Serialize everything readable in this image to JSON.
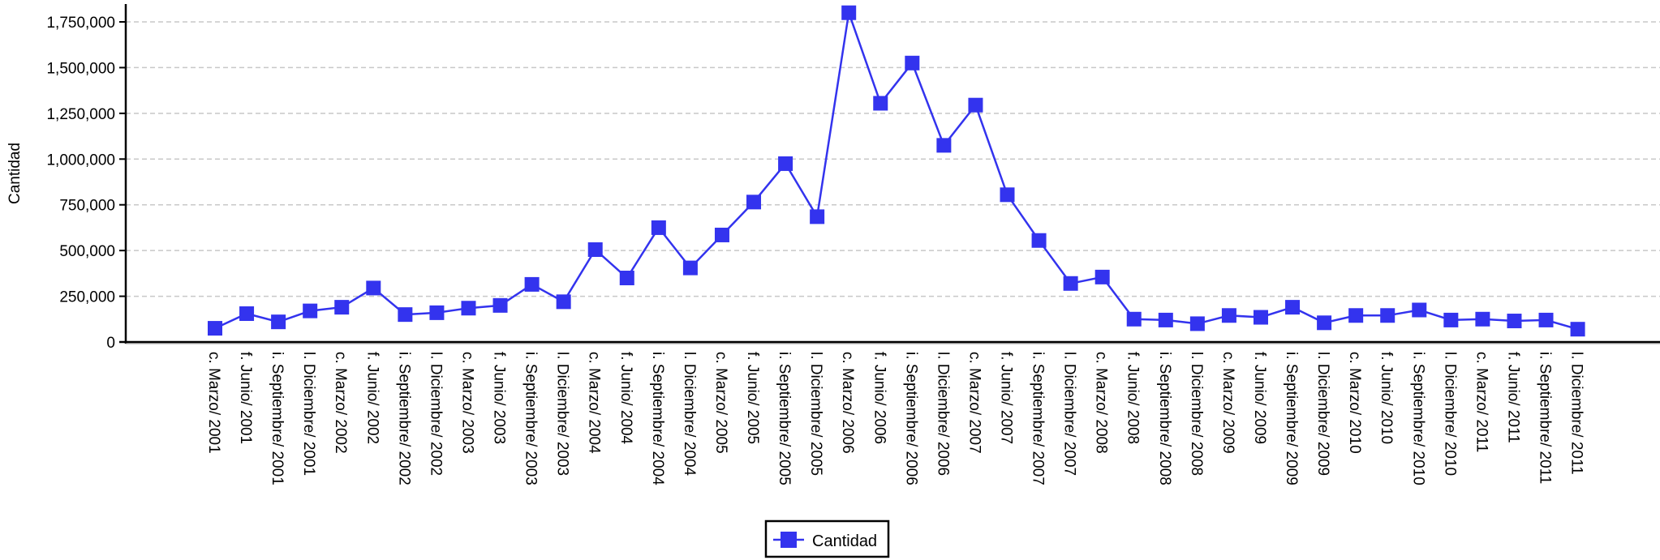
{
  "chart_data": {
    "type": "line",
    "ylabel": "Cantidad",
    "xlabel": "",
    "ylim": [
      0,
      1750000
    ],
    "yticks": [
      0,
      250000,
      500000,
      750000,
      1000000,
      1250000,
      1500000,
      1750000
    ],
    "ytick_labels": [
      "0",
      "250,000",
      "500,000",
      "750,000",
      "1,000,000",
      "1,250,000",
      "1,500,000",
      "1,750,000"
    ],
    "grid": "horizontal dashed",
    "legend_position": "bottom-center",
    "categories": [
      "c. Marzo/ 2001",
      "f. Junio/ 2001",
      "i. Septiembre/ 2001",
      "l. Diciembre/ 2001",
      "c. Marzo/ 2002",
      "f. Junio/ 2002",
      "i. Septiembre/ 2002",
      "l. Diciembre/ 2002",
      "c. Marzo/ 2003",
      "f. Junio/ 2003",
      "i. Septiembre/ 2003",
      "l. Diciembre/ 2003",
      "c. Marzo/ 2004",
      "f. Junio/ 2004",
      "i. Septiembre/ 2004",
      "l. Diciembre/ 2004",
      "c. Marzo/ 2005",
      "f. Junio/ 2005",
      "i. Septiembre/ 2005",
      "l. Diciembre/ 2005",
      "c. Marzo/ 2006",
      "f. Junio/ 2006",
      "i. Septiembre/ 2006",
      "l. Diciembre/ 2006",
      "c. Marzo/ 2007",
      "f. Junio/ 2007",
      "i. Septiembre/ 2007",
      "l. Diciembre/ 2007",
      "c. Marzo/ 2008",
      "f. Junio/ 2008",
      "i. Septiembre/ 2008",
      "l. Diciembre/ 2008",
      "c. Marzo/ 2009",
      "f. Junio/ 2009",
      "i. Septiembre/ 2009",
      "l. Diciembre/ 2009",
      "c. Marzo/ 2010",
      "f. Junio/ 2010",
      "i. Septiembre/ 2010",
      "l. Diciembre/ 2010",
      "c. Marzo/ 2011",
      "f. Junio/ 2011",
      "i. Septiembre/ 2011",
      "l. Diciembre/ 2011"
    ],
    "series": [
      {
        "name": "Cantidad",
        "color": "#3333ee",
        "values": [
          75000,
          155000,
          110000,
          170000,
          190000,
          295000,
          150000,
          160000,
          185000,
          200000,
          315000,
          220000,
          505000,
          350000,
          625000,
          405000,
          585000,
          765000,
          975000,
          685000,
          1800000,
          1305000,
          1525000,
          1075000,
          1295000,
          805000,
          555000,
          320000,
          355000,
          125000,
          120000,
          100000,
          145000,
          135000,
          190000,
          105000,
          145000,
          145000,
          175000,
          120000,
          125000,
          115000,
          120000,
          70000
        ]
      }
    ]
  }
}
